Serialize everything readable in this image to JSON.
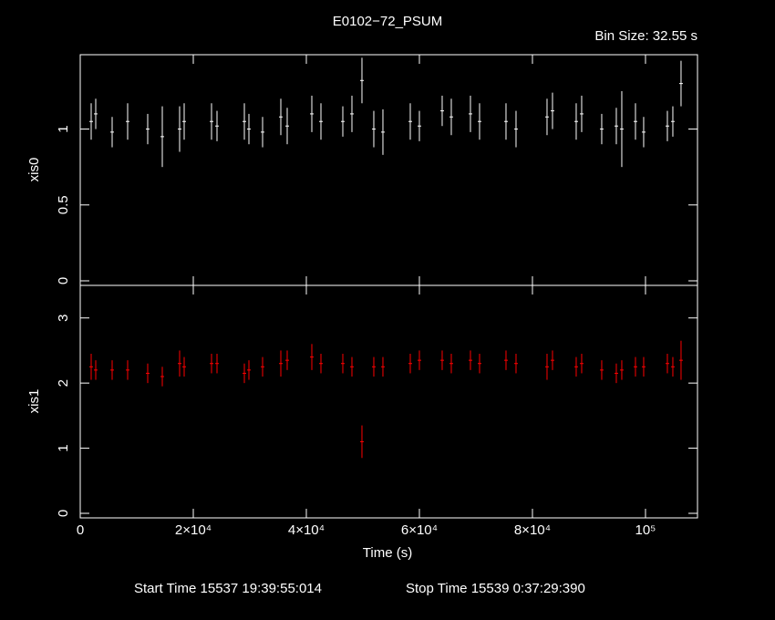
{
  "chart_data": [
    {
      "type": "errorbar",
      "title": "E0102−72_PSUM",
      "subtitle": "Bin Size: 32.55 s",
      "ylabel": "xis0",
      "color": "#ffffff",
      "xlim": [
        0,
        109200
      ],
      "ylim": [
        -0.03,
        1.49
      ],
      "yticks": [
        0,
        0.5,
        1
      ],
      "x": [
        1935,
        2742,
        5645,
        8387,
        11935,
        14516,
        17581,
        18387,
        23226,
        24194,
        29032,
        29839,
        32258,
        35484,
        36613,
        40968,
        42581,
        46452,
        48065,
        49839,
        51935,
        53548,
        58387,
        60000,
        64032,
        65645,
        69032,
        70645,
        75323,
        77097,
        82581,
        83548,
        87742,
        88710,
        92258,
        94839,
        95806,
        98226,
        99677,
        103871,
        104839,
        106290
      ],
      "values": [
        1.05,
        1.1,
        0.98,
        1.05,
        1.0,
        0.95,
        1.0,
        1.05,
        1.05,
        1.02,
        1.05,
        1.0,
        0.98,
        1.08,
        1.02,
        1.1,
        1.05,
        1.05,
        1.1,
        1.32,
        1.0,
        0.98,
        1.05,
        1.02,
        1.12,
        1.08,
        1.1,
        1.05,
        1.05,
        1.0,
        1.08,
        1.12,
        1.05,
        1.1,
        1.0,
        1.02,
        1.0,
        1.05,
        0.98,
        1.02,
        1.05,
        1.3
      ],
      "errors": [
        0.12,
        0.1,
        0.1,
        0.12,
        0.1,
        0.2,
        0.15,
        0.12,
        0.12,
        0.1,
        0.12,
        0.1,
        0.1,
        0.12,
        0.12,
        0.12,
        0.12,
        0.1,
        0.12,
        0.15,
        0.12,
        0.15,
        0.12,
        0.1,
        0.1,
        0.12,
        0.12,
        0.12,
        0.12,
        0.12,
        0.12,
        0.12,
        0.12,
        0.12,
        0.1,
        0.12,
        0.25,
        0.12,
        0.1,
        0.1,
        0.1,
        0.15
      ]
    },
    {
      "type": "errorbar",
      "xlabel": "Time (s)",
      "ylabel": "xis1",
      "color": "#ff0000",
      "xlim": [
        0,
        109200
      ],
      "ylim": [
        -0.07,
        3.5
      ],
      "yticks": [
        0,
        1,
        2,
        3
      ],
      "xticks": [
        0,
        {
          "value": 20000,
          "label": "2×10⁴"
        },
        {
          "value": 40000,
          "label": "4×10⁴"
        },
        {
          "value": 60000,
          "label": "6×10⁴"
        },
        {
          "value": 80000,
          "label": "8×10⁴"
        },
        {
          "value": 100000,
          "label": "10⁵"
        }
      ],
      "x": [
        1935,
        2742,
        5645,
        8387,
        11935,
        14516,
        17581,
        18387,
        23226,
        24194,
        29032,
        29839,
        32258,
        35484,
        36613,
        40968,
        42581,
        46452,
        48065,
        49839,
        51935,
        53548,
        58387,
        60000,
        64032,
        65645,
        69032,
        70645,
        75323,
        77097,
        82581,
        83548,
        87742,
        88710,
        92258,
        94839,
        95806,
        98226,
        99677,
        103871,
        104839,
        106290
      ],
      "values": [
        2.25,
        2.2,
        2.2,
        2.2,
        2.15,
        2.1,
        2.3,
        2.25,
        2.3,
        2.3,
        2.15,
        2.2,
        2.25,
        2.3,
        2.35,
        2.4,
        2.3,
        2.3,
        2.25,
        1.1,
        2.25,
        2.25,
        2.3,
        2.35,
        2.35,
        2.3,
        2.35,
        2.3,
        2.35,
        2.3,
        2.25,
        2.35,
        2.25,
        2.3,
        2.2,
        2.15,
        2.2,
        2.25,
        2.25,
        2.3,
        2.25,
        2.35
      ],
      "errors": [
        0.2,
        0.15,
        0.15,
        0.15,
        0.15,
        0.15,
        0.2,
        0.15,
        0.15,
        0.15,
        0.15,
        0.15,
        0.15,
        0.2,
        0.15,
        0.2,
        0.15,
        0.15,
        0.15,
        0.25,
        0.15,
        0.15,
        0.15,
        0.15,
        0.15,
        0.15,
        0.15,
        0.15,
        0.15,
        0.15,
        0.2,
        0.15,
        0.15,
        0.15,
        0.15,
        0.15,
        0.15,
        0.15,
        0.15,
        0.15,
        0.15,
        0.3
      ]
    }
  ],
  "footer": {
    "start": "Start Time 15537 19:39:55:014",
    "stop": "Stop Time 15539  0:37:29:390"
  }
}
